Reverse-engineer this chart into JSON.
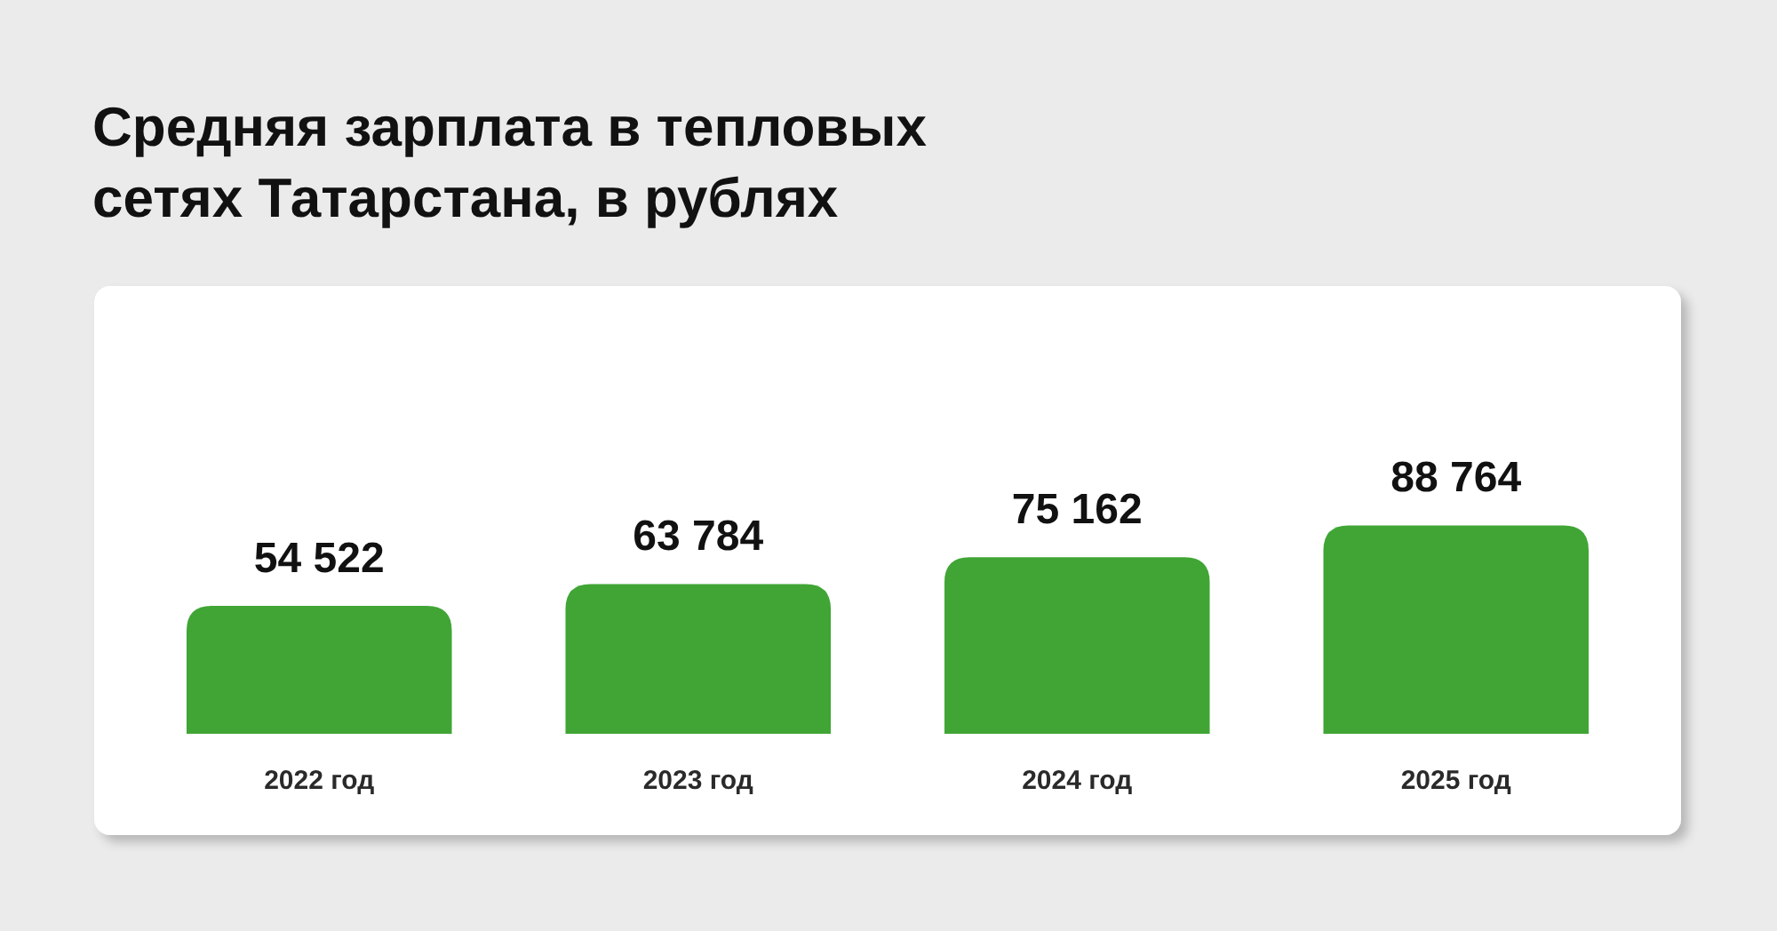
{
  "chart_data": {
    "type": "bar",
    "title": "Средняя зарплата в тепловых сетях Татарстана, в рублях",
    "categories": [
      "2022 год",
      "2023 год",
      "2024 год",
      "2025 год"
    ],
    "values": [
      54522,
      63784,
      75162,
      88764
    ],
    "color": "#40a535",
    "value_labels": [
      "54 522",
      "63 784",
      "75 162",
      "88 764"
    ]
  }
}
